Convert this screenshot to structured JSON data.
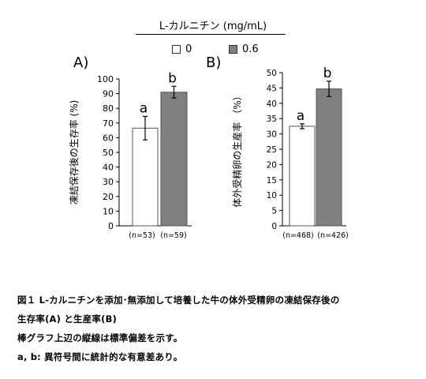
{
  "legend": {
    "title": "L-カルニチン (mg/mL)",
    "items": [
      {
        "label": "0",
        "color": "#ffffff"
      },
      {
        "label": "0.6",
        "color": "#808080"
      }
    ]
  },
  "caption": {
    "line1": "図１ L-カルニチンを添加･無添加して培養した牛の体外受精卵の凍結保存後の",
    "line2": "生存率(A) と生産率(B)",
    "line3": "棒グラフ上辺の縦線は標準偏差を示す。",
    "line4": "a, b: 異符号間に統計的な有意差あり。"
  },
  "chart_data": [
    {
      "type": "bar",
      "panel": "A)",
      "title": "",
      "xlabel": "",
      "ylabel": "凍結保存後の生存率 (%)",
      "ylim": [
        0,
        100
      ],
      "yticks": [
        0,
        10,
        20,
        30,
        40,
        50,
        60,
        70,
        80,
        90,
        100
      ],
      "categories": [
        "(n=53)",
        "(n=59)"
      ],
      "values": [
        66.5,
        91
      ],
      "errors": [
        8,
        4
      ],
      "sig_labels": [
        "a",
        "b"
      ],
      "colors": [
        "#ffffff",
        "#808080"
      ]
    },
    {
      "type": "bar",
      "panel": "B)",
      "title": "",
      "xlabel": "",
      "ylabel": "体外受精卵の生産率 （%）",
      "ylim": [
        0,
        50
      ],
      "yticks": [
        0,
        5,
        10,
        15,
        20,
        25,
        30,
        35,
        40,
        45,
        50
      ],
      "categories": [
        "(n=468)",
        "(n=426)"
      ],
      "values": [
        32.5,
        44.7
      ],
      "errors": [
        0.8,
        2.5
      ],
      "sig_labels": [
        "a",
        "b"
      ],
      "colors": [
        "#ffffff",
        "#808080"
      ]
    }
  ]
}
